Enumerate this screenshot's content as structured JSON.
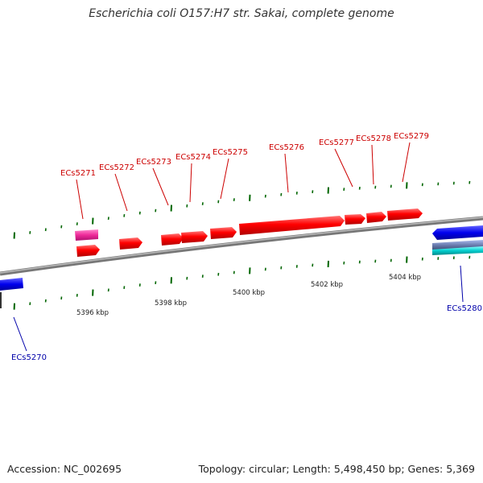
{
  "title": "Escherichia coli O157:H7 str. Sakai, complete genome",
  "footer": {
    "accession": "Accession: NC_002695",
    "summary": "Topology: circular; Length: 5,498,450 bp; Genes: 5,369"
  },
  "colors": {
    "forward_gene": "#ff0000",
    "forward_gene_alt": "#ff3399",
    "reverse_gene": "#0000ff",
    "reverse_gene_alt": "#00cccc",
    "backbone": "#888888",
    "ticks": "#006600",
    "forward_label": "#cc0000",
    "reverse_label": "#0000aa"
  },
  "position_labels": [
    "5396 kbp",
    "5398 kbp",
    "5400 kbp",
    "5402 kbp",
    "5404 kbp"
  ],
  "forward_gene_labels": [
    "ECs5271",
    "ECs5272",
    "ECs5273",
    "ECs5274",
    "ECs5275",
    "ECs5276",
    "ECs5277",
    "ECs5278",
    "ECs5279"
  ],
  "reverse_gene_labels": [
    "ECs5270",
    "ECs5280"
  ]
}
